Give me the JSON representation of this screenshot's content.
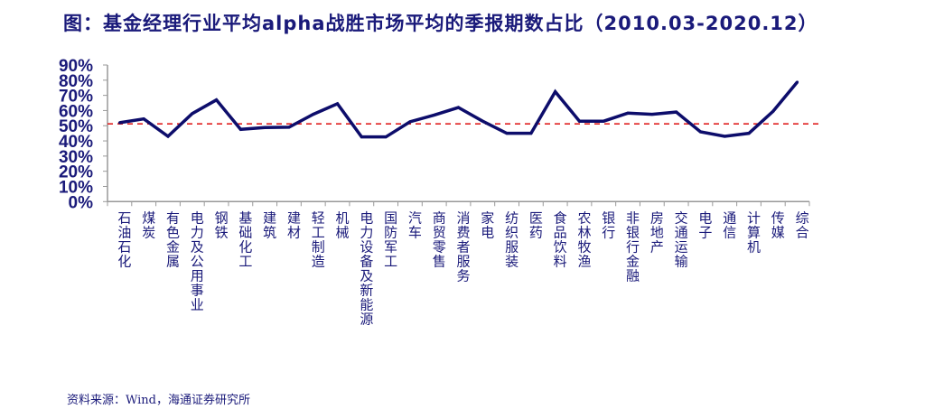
{
  "chart_data": {
    "type": "line",
    "title": "图：基金经理行业平均alpha战胜市场平均的季报期数占比（2010.03-2020.12）",
    "categories": [
      "石油石化",
      "煤炭",
      "有色金属",
      "电力及公用事业",
      "钢铁",
      "基础化工",
      "建筑",
      "建材",
      "轻工制造",
      "机械",
      "电力设备及新能源",
      "国防军工",
      "汽车",
      "商贸零售",
      "消费者服务",
      "家电",
      "纺织服装",
      "医药",
      "食品饮料",
      "农林牧渔",
      "银行",
      "非银行金融",
      "房地产",
      "交通运输",
      "电子",
      "通信",
      "计算机",
      "传媒",
      "综合"
    ],
    "values": [
      52,
      54.5,
      43,
      58,
      67,
      47.6,
      48.8,
      49,
      57.5,
      64.5,
      42.6,
      42.6,
      52.6,
      57,
      62,
      53,
      45,
      45,
      72.4,
      53,
      53,
      58.3,
      57.5,
      59,
      46,
      43,
      45,
      59.5,
      78.8
    ],
    "reference_line": 51.2,
    "ylim": [
      0,
      90
    ],
    "yticks": [
      "0%",
      "10%",
      "20%",
      "30%",
      "40%",
      "50%",
      "60%",
      "70%",
      "80%",
      "90%"
    ],
    "xlabel": "",
    "ylabel": "",
    "grid": false,
    "colors": {
      "line": "#0d0d6b",
      "reference": "#e02020",
      "text": "#1a1a7a",
      "axis": "#999999"
    }
  },
  "source": "资料来源：Wind，海通证券研究所"
}
